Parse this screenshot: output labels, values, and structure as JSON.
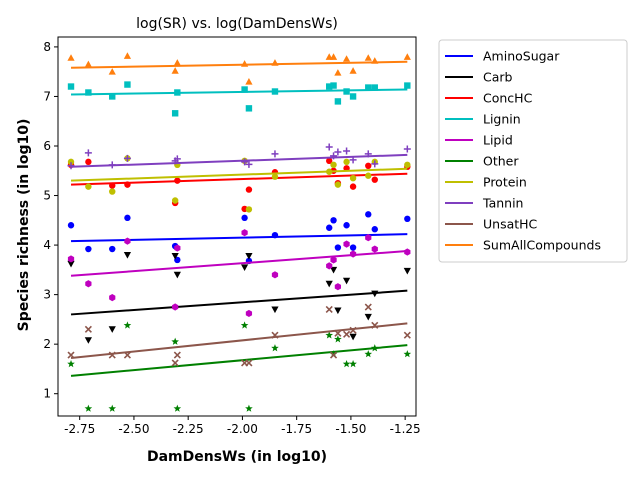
{
  "chart_data": {
    "type": "scatter",
    "title": "log(SR) vs. log(DamDensWs)",
    "xlabel": "DamDensWs (in log10)",
    "ylabel": "Species richness (in log10)",
    "xlim": [
      -2.85,
      -1.2
    ],
    "ylim": [
      0.55,
      8.2
    ],
    "xticks": [
      "-2.75",
      "-2.50",
      "-2.25",
      "-2.00",
      "-1.75",
      "-1.50",
      "-1.25"
    ],
    "yticks": [
      "1",
      "2",
      "3",
      "4",
      "5",
      "6",
      "7",
      "8"
    ],
    "grid": false,
    "legend_position": "outside-right",
    "x_points": [
      -2.79,
      -2.71,
      -2.6,
      -2.53,
      -2.31,
      -2.3,
      -1.99,
      -1.97,
      -1.85,
      -1.6,
      -1.58,
      -1.56,
      -1.52,
      -1.49,
      -1.42,
      -1.39,
      -1.24
    ],
    "series": [
      {
        "name": "AminoSugar",
        "color": "#0000ff",
        "marker": "circle",
        "line": [
          4.08,
          4.22
        ],
        "values": [
          4.4,
          3.92,
          3.92,
          4.55,
          3.98,
          3.7,
          4.55,
          3.68,
          4.2,
          4.35,
          4.5,
          3.95,
          4.4,
          3.95,
          4.62,
          4.32,
          4.53
        ]
      },
      {
        "name": "Carb",
        "color": "#000000",
        "marker": "triangle-down",
        "line": [
          2.6,
          3.08
        ],
        "values": [
          3.62,
          2.08,
          2.3,
          3.8,
          3.78,
          3.4,
          3.55,
          3.78,
          2.7,
          3.22,
          3.5,
          2.68,
          3.28,
          2.15,
          2.55,
          3.02,
          3.48
        ]
      },
      {
        "name": "ConcHC",
        "color": "#ff0000",
        "marker": "circle",
        "line": [
          5.22,
          5.44
        ],
        "values": [
          5.62,
          5.68,
          5.2,
          5.22,
          4.85,
          5.3,
          4.73,
          5.12,
          5.47,
          5.7,
          5.5,
          5.25,
          5.55,
          5.18,
          5.6,
          5.32,
          5.58
        ]
      },
      {
        "name": "Lignin",
        "color": "#00bfbf",
        "marker": "square",
        "line": [
          7.04,
          7.14
        ],
        "values": [
          7.2,
          7.08,
          7.0,
          7.24,
          6.66,
          7.08,
          7.14,
          6.76,
          7.1,
          7.2,
          7.22,
          6.9,
          7.1,
          7.0,
          7.18,
          7.18,
          7.22
        ]
      },
      {
        "name": "Lipid",
        "color": "#bf00bf",
        "marker": "hexagon",
        "line": [
          3.38,
          3.88
        ],
        "values": [
          3.72,
          3.22,
          2.94,
          4.08,
          2.75,
          3.94,
          4.25,
          2.62,
          3.4,
          3.58,
          3.7,
          3.16,
          4.02,
          3.82,
          4.15,
          3.92,
          3.86
        ]
      },
      {
        "name": "Other",
        "color": "#008000",
        "marker": "star",
        "line": [
          1.36,
          1.98
        ],
        "values": [
          1.6,
          0.7,
          0.7,
          2.38,
          2.05,
          0.7,
          2.38,
          0.7,
          1.92,
          2.18,
          1.8,
          2.1,
          1.6,
          1.6,
          1.8,
          1.92,
          1.8
        ]
      },
      {
        "name": "Protein",
        "color": "#bfbf00",
        "marker": "circle",
        "line": [
          5.3,
          5.54
        ],
        "values": [
          5.68,
          5.18,
          5.08,
          5.75,
          4.9,
          5.62,
          5.7,
          4.72,
          5.38,
          5.48,
          5.62,
          5.22,
          5.68,
          5.35,
          5.4,
          5.68,
          5.62
        ]
      },
      {
        "name": "Tannin",
        "color": "#7f3fbf",
        "marker": "plus",
        "line": [
          5.58,
          5.82
        ],
        "values": [
          5.6,
          5.86,
          5.62,
          5.75,
          5.7,
          5.74,
          5.68,
          5.63,
          5.84,
          5.98,
          5.8,
          5.88,
          5.9,
          5.72,
          5.84,
          5.64,
          5.94
        ]
      },
      {
        "name": "UnsatHC",
        "color": "#8c564b",
        "marker": "x",
        "line": [
          1.72,
          2.42
        ],
        "values": [
          1.78,
          2.3,
          1.78,
          1.78,
          1.62,
          1.78,
          1.62,
          1.62,
          2.18,
          2.7,
          1.78,
          2.22,
          2.2,
          2.28,
          2.75,
          2.38,
          2.18
        ]
      },
      {
        "name": "SumAllCompounds",
        "color": "#ff7f0e",
        "marker": "triangle-up",
        "line": [
          7.58,
          7.7
        ],
        "values": [
          7.78,
          7.65,
          7.5,
          7.82,
          7.52,
          7.68,
          7.66,
          7.3,
          7.68,
          7.8,
          7.8,
          7.48,
          7.76,
          7.52,
          7.78,
          7.72,
          7.8
        ]
      }
    ]
  }
}
